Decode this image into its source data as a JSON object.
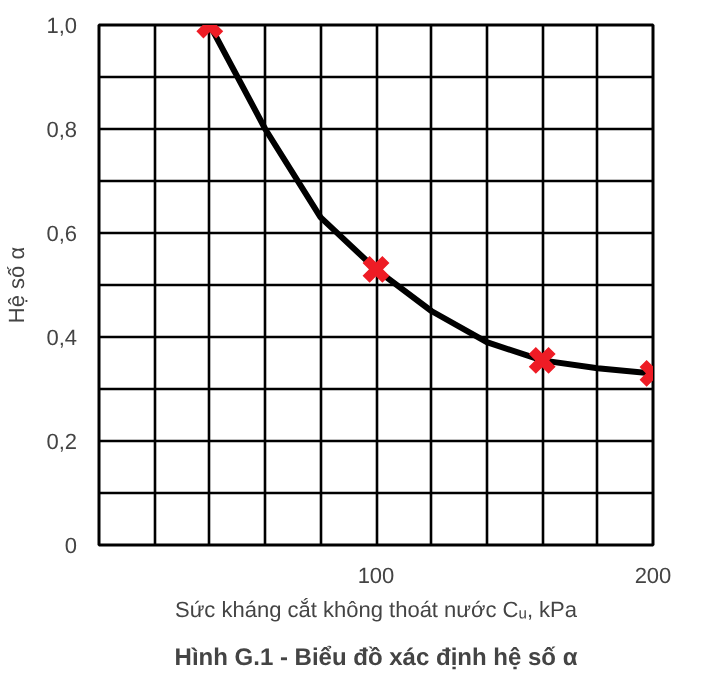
{
  "chart_data": {
    "type": "line",
    "title": "Hình G.1 - Biểu đồ xác định hệ số α",
    "xlabel": "Sức kháng cắt không thoát nước Cᵤ, kPa",
    "ylabel": "Hệ số α",
    "xlim": [
      0,
      200
    ],
    "ylim": [
      0,
      1.0
    ],
    "xticks": [
      {
        "value": 0,
        "label": null
      },
      {
        "value": 20,
        "label": null
      },
      {
        "value": 40,
        "label": null
      },
      {
        "value": 60,
        "label": null
      },
      {
        "value": 80,
        "label": null
      },
      {
        "value": 100,
        "label": "100"
      },
      {
        "value": 120,
        "label": null
      },
      {
        "value": 140,
        "label": null
      },
      {
        "value": 160,
        "label": null
      },
      {
        "value": 180,
        "label": null
      },
      {
        "value": 200,
        "label": "200"
      }
    ],
    "yticks": [
      {
        "value": 0,
        "label": "0"
      },
      {
        "value": 0.1,
        "label": null
      },
      {
        "value": 0.2,
        "label": "0,2"
      },
      {
        "value": 0.3,
        "label": null
      },
      {
        "value": 0.4,
        "label": "0,4"
      },
      {
        "value": 0.5,
        "label": null
      },
      {
        "value": 0.6,
        "label": "0,6"
      },
      {
        "value": 0.7,
        "label": null
      },
      {
        "value": 0.8,
        "label": "0,8"
      },
      {
        "value": 0.9,
        "label": null
      },
      {
        "value": 1.0,
        "label": "1,0"
      }
    ],
    "grid": true,
    "series": [
      {
        "color": "#000000",
        "marker": "none",
        "x": [
          40,
          60,
          80,
          100,
          120,
          140,
          160,
          180,
          200
        ],
        "values": [
          1.0,
          0.8,
          0.63,
          0.53,
          0.45,
          0.39,
          0.355,
          0.34,
          0.33
        ]
      },
      {
        "type": "scatter",
        "color": "#ee1c25",
        "marker": "cross",
        "x": [
          40,
          100,
          160,
          200
        ],
        "values": [
          1.0,
          0.53,
          0.355,
          0.33
        ]
      }
    ]
  }
}
